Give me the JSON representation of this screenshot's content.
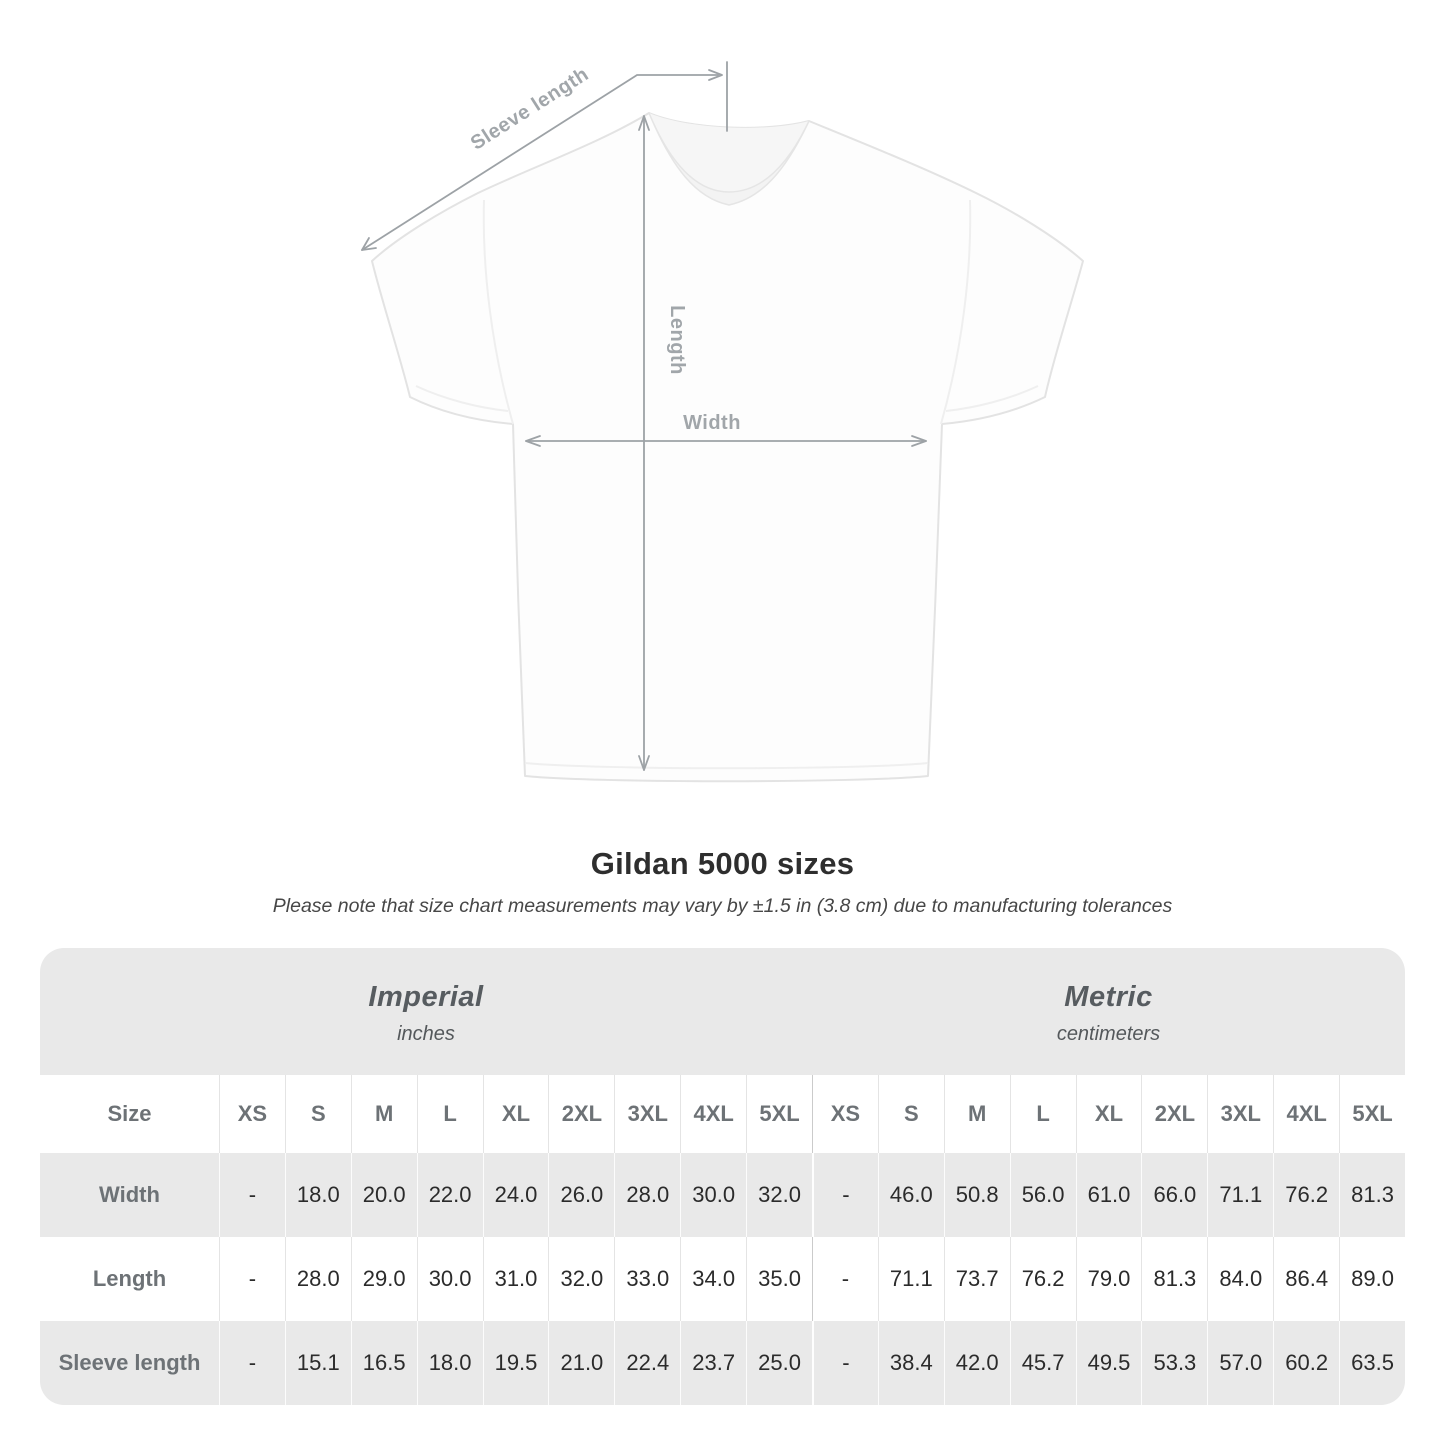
{
  "diagram": {
    "sleeve_length_label": "Sleeve length",
    "length_label": "Length",
    "width_label": "Width"
  },
  "chart_data": {
    "type": "table",
    "title": "Gildan 5000 sizes",
    "subtitle": "Please note that size chart measurements may vary by ±1.5 in (3.8 cm) due to manufacturing tolerances",
    "size_header": "Size",
    "sizes": [
      "XS",
      "S",
      "M",
      "L",
      "XL",
      "2XL",
      "3XL",
      "4XL",
      "5XL"
    ],
    "unit_groups": [
      {
        "label": "Imperial",
        "sublabel": "inches"
      },
      {
        "label": "Metric",
        "sublabel": "centimeters"
      }
    ],
    "rows": [
      {
        "label": "Width",
        "imperial": [
          "-",
          "18.0",
          "20.0",
          "22.0",
          "24.0",
          "26.0",
          "28.0",
          "30.0",
          "32.0"
        ],
        "metric": [
          "-",
          "46.0",
          "50.8",
          "56.0",
          "61.0",
          "66.0",
          "71.1",
          "76.2",
          "81.3"
        ]
      },
      {
        "label": "Length",
        "imperial": [
          "-",
          "28.0",
          "29.0",
          "30.0",
          "31.0",
          "32.0",
          "33.0",
          "34.0",
          "35.0"
        ],
        "metric": [
          "-",
          "71.1",
          "73.7",
          "76.2",
          "79.0",
          "81.3",
          "84.0",
          "86.4",
          "89.0"
        ]
      },
      {
        "label": "Sleeve length",
        "imperial": [
          "-",
          "15.1",
          "16.5",
          "18.0",
          "19.5",
          "21.0",
          "22.4",
          "23.7",
          "25.0"
        ],
        "metric": [
          "-",
          "38.4",
          "42.0",
          "45.7",
          "49.5",
          "53.3",
          "57.0",
          "60.2",
          "63.5"
        ]
      }
    ]
  },
  "colors": {
    "band_gray": "#e9e9e9",
    "arrow_gray": "#9da2a6",
    "diagram_label_gray": "#a1a6aa",
    "header_text_gray": "#6d7276",
    "value_dark": "#2b2b2b"
  }
}
